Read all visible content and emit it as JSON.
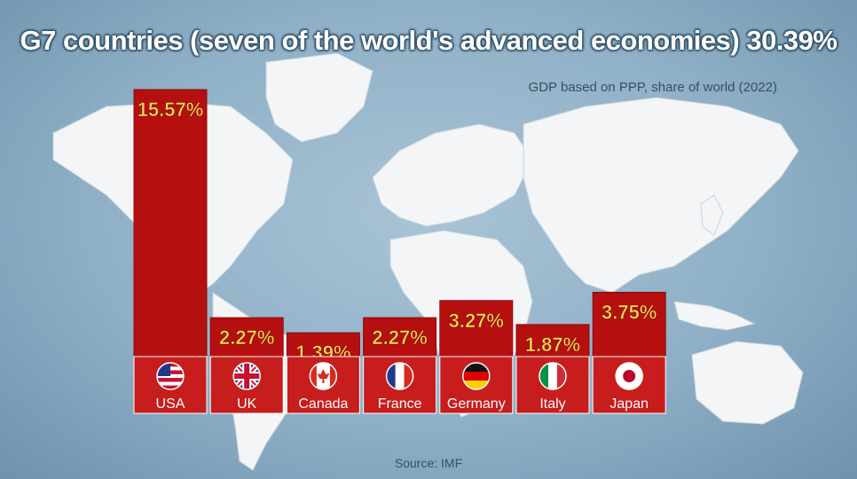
{
  "title": "G7 countries (seven of the world's advanced economies) 30.39%",
  "subtitle": "GDP based on PPP, share of world (2022)",
  "source": "Source: IMF",
  "colors": {
    "bar": "#b50f0f",
    "bar_dark": "#8f0a0a",
    "label_band": "#c81d1d",
    "value_text": "#ffe14a"
  },
  "chart_data": {
    "type": "bar",
    "categories": [
      "USA",
      "UK",
      "Canada",
      "France",
      "Germany",
      "Italy",
      "Japan"
    ],
    "values": [
      15.57,
      2.27,
      1.39,
      2.27,
      3.27,
      1.87,
      3.75
    ],
    "value_labels": [
      "15.57%",
      "2.27%",
      "1.39%",
      "2.27%",
      "3.27%",
      "1.87%",
      "3.75%"
    ],
    "flags": [
      "us-flag-icon",
      "uk-flag-icon",
      "canada-flag-icon",
      "france-flag-icon",
      "germany-flag-icon",
      "italy-flag-icon",
      "japan-flag-icon"
    ],
    "title": "G7 countries (seven of the world's advanced economies) 30.39%",
    "xlabel": "",
    "ylabel": "",
    "ylim": [
      0,
      15.57
    ],
    "grid": false,
    "legend": "none"
  }
}
